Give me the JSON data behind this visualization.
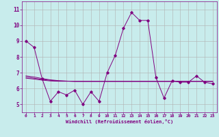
{
  "xlabel": "Windchill (Refroidissement éolien,°C)",
  "bg_color": "#c8ecec",
  "grid_color": "#b0b0b0",
  "line_color": "#800080",
  "xlim": [
    -0.5,
    23.5
  ],
  "ylim": [
    4.5,
    11.5
  ],
  "yticks": [
    5,
    6,
    7,
    8,
    9,
    10,
    11
  ],
  "xticks": [
    0,
    1,
    2,
    3,
    4,
    5,
    6,
    7,
    8,
    9,
    10,
    11,
    12,
    13,
    14,
    15,
    16,
    17,
    18,
    19,
    20,
    21,
    22,
    23
  ],
  "series1_x": [
    0,
    1,
    2,
    3,
    4,
    5,
    6,
    7,
    8,
    9,
    10,
    11,
    12,
    13,
    14,
    15,
    16,
    17,
    18,
    19,
    20,
    21,
    22,
    23
  ],
  "series1_y": [
    9.0,
    8.6,
    6.6,
    5.2,
    5.8,
    5.6,
    5.9,
    5.0,
    5.8,
    5.2,
    7.0,
    8.1,
    9.8,
    10.8,
    10.3,
    10.3,
    6.7,
    5.4,
    6.5,
    6.4,
    6.4,
    6.8,
    6.4,
    6.3
  ],
  "series2_x": [
    0,
    1,
    2,
    3,
    4,
    5,
    6,
    7,
    8,
    9,
    10,
    11,
    12,
    13,
    14,
    15,
    16,
    17,
    18,
    19,
    20,
    21,
    22,
    23
  ],
  "series2_y": [
    6.8,
    6.73,
    6.63,
    6.55,
    6.5,
    6.47,
    6.45,
    6.45,
    6.45,
    6.45,
    6.45,
    6.45,
    6.45,
    6.45,
    6.45,
    6.45,
    6.45,
    6.45,
    6.45,
    6.45,
    6.45,
    6.45,
    6.45,
    6.45
  ],
  "series3_x": [
    0,
    1,
    2,
    3,
    4,
    5,
    6,
    7,
    8,
    9,
    10,
    11,
    12,
    13,
    14,
    15,
    16,
    17,
    18,
    19,
    20,
    21,
    22,
    23
  ],
  "series3_y": [
    6.73,
    6.65,
    6.58,
    6.52,
    6.48,
    6.47,
    6.46,
    6.46,
    6.46,
    6.46,
    6.46,
    6.46,
    6.46,
    6.46,
    6.46,
    6.46,
    6.46,
    6.46,
    6.46,
    6.46,
    6.46,
    6.46,
    6.46,
    6.46
  ],
  "series4_x": [
    0,
    1,
    2,
    3,
    4,
    5,
    6,
    7,
    8,
    9,
    10,
    11,
    12,
    13,
    14,
    15,
    16,
    17,
    18,
    19,
    20,
    21,
    22,
    23
  ],
  "series4_y": [
    6.65,
    6.6,
    6.53,
    6.48,
    6.46,
    6.46,
    6.46,
    6.46,
    6.46,
    6.46,
    6.46,
    6.46,
    6.46,
    6.46,
    6.46,
    6.46,
    6.46,
    6.46,
    6.46,
    6.46,
    6.46,
    6.46,
    6.46,
    6.46
  ]
}
